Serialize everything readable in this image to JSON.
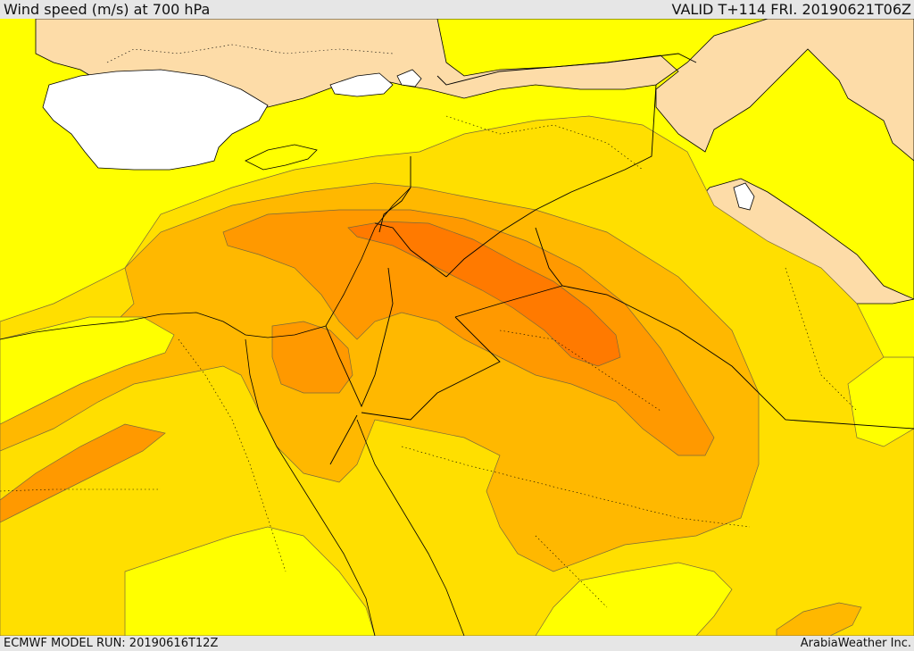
{
  "header": {
    "title": "Wind speed (m/s) at 700 hPa",
    "valid": "VALID T+114 FRI. 20190621T06Z"
  },
  "footer": {
    "model_run": "ECMWF MODEL RUN: 20190616T12Z",
    "credit": "ArabiaWeather Inc."
  },
  "colors": {
    "land": "#fddca8",
    "water": "#ffffff",
    "band_1": "#ffff00",
    "band_2": "#ffdf00",
    "band_3": "#ffb800",
    "band_4": "#ff9900",
    "band_5": "#ff7a00",
    "coastline": "#000000",
    "contour": "#7a6a3a"
  }
}
